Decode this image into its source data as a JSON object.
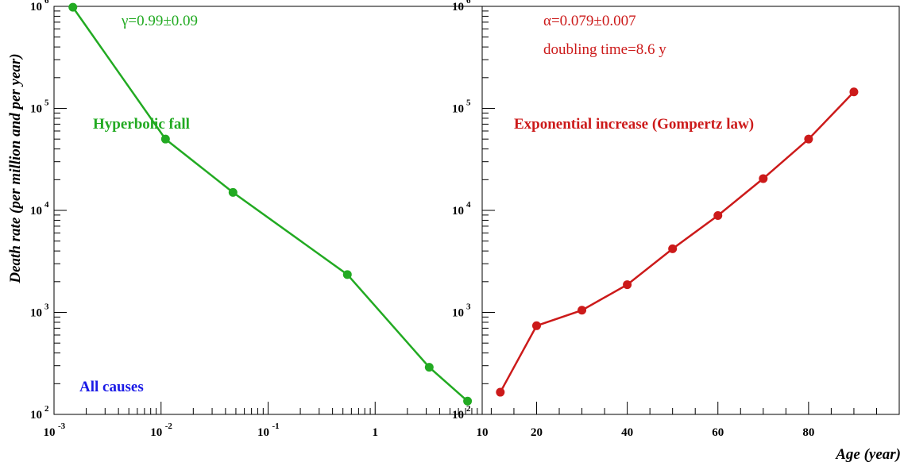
{
  "chart_data": [
    {
      "type": "line",
      "xscale": "log",
      "yscale": "log",
      "xlim": [
        0.001,
        10
      ],
      "ylim": [
        100,
        1000000
      ],
      "xticks": [
        {
          "label": "10",
          "exp": "-3"
        },
        {
          "label": "10",
          "exp": "-2"
        },
        {
          "label": "10",
          "exp": "-1"
        },
        {
          "label": "1",
          "exp": ""
        },
        {
          "label": "10",
          "exp": ""
        }
      ],
      "yticks": [
        {
          "label": "10",
          "exp": "2"
        },
        {
          "label": "10",
          "exp": "3"
        },
        {
          "label": "10",
          "exp": "4"
        },
        {
          "label": "10",
          "exp": "5"
        },
        {
          "label": "10",
          "exp": "6"
        }
      ],
      "ylabel": "Death rate (per million and per year)",
      "xlabel": "",
      "color": "#22aa22",
      "series": [
        {
          "x": [
            0.0015,
            0.011,
            0.047,
            0.55,
            3.2,
            7.3
          ],
          "y": [
            980000,
            50000,
            15000,
            2350,
            290,
            135
          ]
        }
      ],
      "annotations": {
        "fit": "γ=0.99±0.09",
        "label": "Hyperbolic fall",
        "cause": "All causes"
      },
      "annotation_colors": {
        "fit": "#22aa22",
        "label": "#22aa22",
        "cause": "#1a1ae6"
      }
    },
    {
      "type": "line",
      "xscale": "linear",
      "yscale": "log",
      "xlim": [
        8,
        100
      ],
      "ylim": [
        100,
        1000000
      ],
      "xticks": [
        {
          "label": "20",
          "exp": ""
        },
        {
          "label": "40",
          "exp": ""
        },
        {
          "label": "60",
          "exp": ""
        },
        {
          "label": "80",
          "exp": ""
        }
      ],
      "yticks": [
        {
          "label": "10",
          "exp": "2"
        },
        {
          "label": "10",
          "exp": "3"
        },
        {
          "label": "10",
          "exp": "4"
        },
        {
          "label": "10",
          "exp": "5"
        },
        {
          "label": "10",
          "exp": "6"
        }
      ],
      "ylabel": "",
      "xlabel": "Age (year)",
      "color": "#cc1a1a",
      "series": [
        {
          "x": [
            12,
            20,
            30,
            40,
            50,
            60,
            70,
            80,
            90
          ],
          "y": [
            165,
            740,
            1050,
            1870,
            4200,
            8900,
            20500,
            50000,
            145000
          ]
        }
      ],
      "annotations": {
        "fit": "α=0.079±0.007",
        "doubling": "doubling time=8.6 y",
        "label": "Exponential increase (Gompertz law)"
      },
      "annotation_colors": {
        "fit": "#cc1a1a",
        "doubling": "#cc1a1a",
        "label": "#cc1a1a"
      }
    }
  ]
}
